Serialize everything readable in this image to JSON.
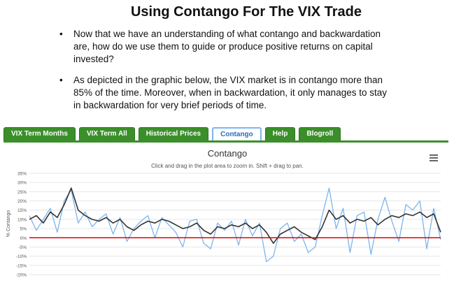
{
  "header": {
    "title": "Using Contango For The VIX Trade"
  },
  "bullets": [
    [
      "Now that we have an understanding of what contango and backwardation",
      "are, how do we use them to guide or produce positive returns on capital",
      "invested?"
    ],
    [
      "As depicted in the graphic below, the VIX market is in contango more than",
      "85% of the time. Moreover, when in backwardation, it only manages to stay",
      "in backwardation for very brief periods of time."
    ]
  ],
  "tabs": [
    "VIX Term Months",
    "VIX Term All",
    "Historical Prices",
    "Contango",
    "Help",
    "Blogroll"
  ],
  "active_tab": 3,
  "chart_data": {
    "type": "line",
    "title": "Contango",
    "subtitle": "Click and drag in the plot area to zoom in. Shift + drag to pan.",
    "y_label": "% Contango",
    "ylim": [
      -20,
      35
    ],
    "yticks": [
      {
        "value": -20,
        "label": "-20%"
      },
      {
        "value": -15,
        "label": "-15%"
      },
      {
        "value": -10,
        "label": "-10%"
      },
      {
        "value": -5,
        "label": "-5%"
      },
      {
        "value": 0,
        "label": "0%"
      },
      {
        "value": 5,
        "label": "5%"
      },
      {
        "value": 10,
        "label": "10%"
      },
      {
        "value": 15,
        "label": "15%"
      },
      {
        "value": 20,
        "label": "20%"
      },
      {
        "value": 25,
        "label": "25%"
      },
      {
        "value": 30,
        "label": "30%"
      },
      {
        "value": 35,
        "label": "35%"
      }
    ],
    "grid": true,
    "reference_line": {
      "value": 0,
      "color": "#e00000"
    },
    "series": [
      {
        "color": "#7cb5ec",
        "values": [
          12,
          4,
          10,
          16,
          3,
          20,
          26,
          8,
          14,
          6,
          10,
          13,
          2,
          11,
          -2,
          5,
          9,
          12,
          0,
          11,
          7,
          3,
          -5,
          9,
          10,
          -3,
          -6,
          8,
          4,
          9,
          -4,
          10,
          1,
          8,
          -13,
          -10,
          5,
          8,
          -2,
          2,
          -8,
          -5,
          12,
          27,
          5,
          16,
          -8,
          12,
          14,
          -9,
          10,
          22,
          9,
          -2,
          18,
          15,
          20,
          -6,
          16,
          -1
        ]
      },
      {
        "color": "#333333",
        "values": [
          10,
          12,
          8,
          14,
          11,
          18,
          27,
          15,
          12,
          10,
          9,
          11,
          8,
          10,
          6,
          4,
          7,
          9,
          8,
          10,
          9,
          7,
          5,
          6,
          8,
          4,
          2,
          6,
          5,
          7,
          6,
          8,
          5,
          7,
          3,
          -3,
          2,
          4,
          6,
          3,
          1,
          -1,
          6,
          15,
          10,
          12,
          8,
          10,
          9,
          11,
          7,
          10,
          12,
          11,
          13,
          12,
          14,
          11,
          13,
          3
        ]
      }
    ]
  }
}
